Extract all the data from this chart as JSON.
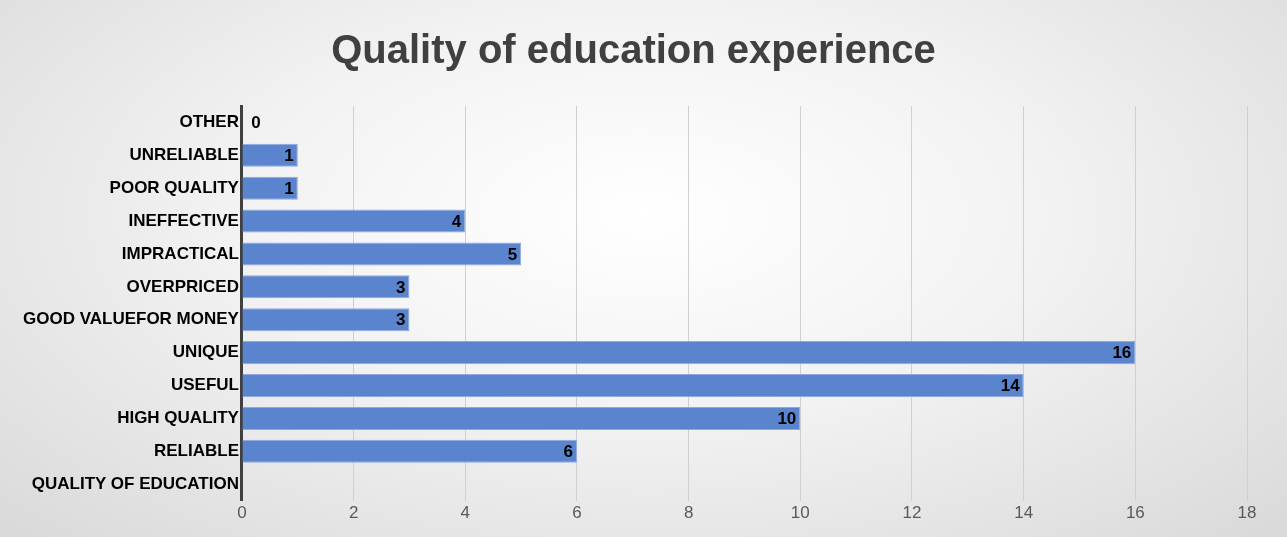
{
  "chart_data": {
    "type": "bar",
    "orientation": "horizontal",
    "title": "Quality of education experience",
    "categories": [
      "OTHER",
      "UNRELIABLE",
      "POOR QUALITY",
      "INEFFECTIVE",
      "IMPRACTICAL",
      "OVERPRICED",
      "GOOD VALUEFOR MONEY",
      "UNIQUE",
      "USEFUL",
      "HIGH QUALITY",
      "RELIABLE",
      "QUALITY OF EDUCATION"
    ],
    "values": [
      0,
      1,
      1,
      4,
      5,
      3,
      3,
      16,
      14,
      10,
      6,
      null
    ],
    "color": "#5b84cf",
    "xlim": [
      0,
      18
    ],
    "xticks": [
      0,
      2,
      4,
      6,
      8,
      10,
      12,
      14,
      16,
      18
    ],
    "grid": "x",
    "legend": false,
    "data_labels": true
  }
}
